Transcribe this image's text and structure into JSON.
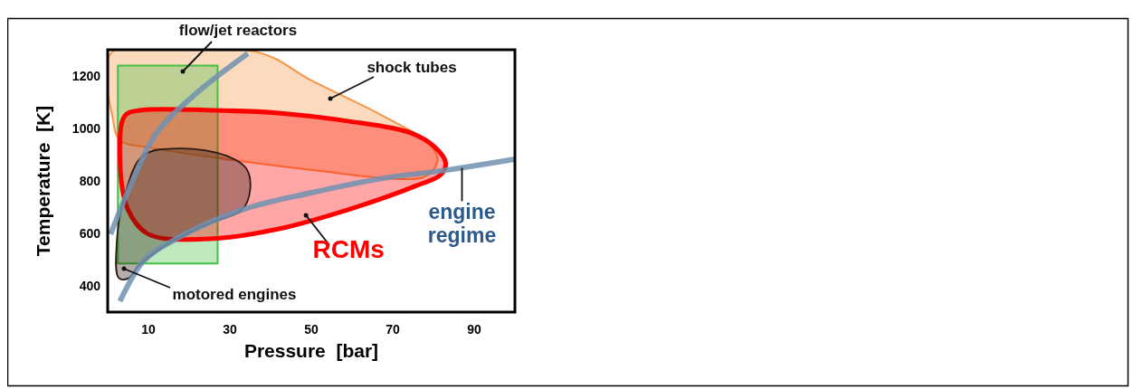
{
  "chart_data": {
    "type": "area",
    "xlabel": "Pressure  [bar]",
    "ylabel": "Temperature  [K]",
    "xlim": [
      0,
      100
    ],
    "ylim": [
      300,
      1300
    ],
    "xticks": [
      10,
      30,
      50,
      70,
      90
    ],
    "yticks": [
      400,
      600,
      800,
      1000,
      1200
    ],
    "grid": false,
    "series": [
      {
        "type": "line",
        "color": "#7090b0",
        "x": [
          0.7,
          6,
          12,
          21.3,
          34.4
        ],
        "values": [
          597,
          797,
          983,
          1128,
          1286
        ]
      },
      {
        "type": "line",
        "color": "#7090b0",
        "x": [
          3,
          8.7,
          16,
          33,
          50,
          67.6,
          83,
          100
        ],
        "values": [
          341,
          493,
          572,
          690,
          755,
          810,
          841,
          883
        ]
      },
      {
        "color": "#f79646",
        "x": [
          1,
          1.3,
          3,
          10,
          29,
          50.4,
          72,
          78,
          81,
          79,
          67.6,
          50,
          37
        ],
        "values": [
          1290,
          1034,
          955,
          928,
          883,
          841,
          807,
          817,
          876,
          941,
          1048,
          1183,
          1290
        ]
      },
      {
        "color": "#44c044",
        "x": [
          2.5,
          27,
          27,
          2.5
        ],
        "values": [
          1240,
          1240,
          485,
          485
        ]
      },
      {
        "color": "#ff0000",
        "x": [
          4.2,
          7.8,
          26.4,
          42,
          59,
          74.4,
          80.4,
          83,
          81.8,
          76,
          59,
          42,
          25,
          10,
          5,
          3
        ],
        "values": [
          1048,
          1069,
          1069,
          1059,
          1028,
          983,
          928,
          869,
          824,
          783,
          690,
          617,
          579,
          597,
          690,
          890
        ]
      },
      {
        "color": "#2a1a10",
        "x": [
          4.3,
          8.7,
          18,
          29,
          34,
          35,
          33,
          25,
          14.7,
          7.8,
          5,
          2.7,
          2.2
        ],
        "values": [
          752,
          897,
          924,
          897,
          848,
          769,
          690,
          638,
          559,
          479,
          428,
          431,
          559
        ]
      }
    ],
    "annotations": [
      "flow/jet reactors",
      "shock tubes",
      {
        "text": "RCMs",
        "x": 48.7,
        "y": 669
      },
      "motored engines",
      {
        "text": "engine regime",
        "x": 87,
        "y": 850
      }
    ]
  }
}
